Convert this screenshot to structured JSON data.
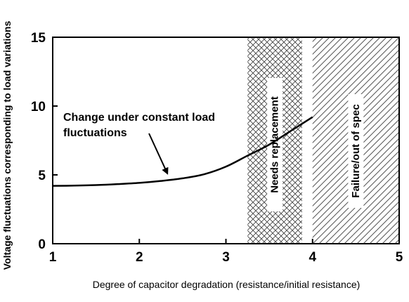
{
  "chart_data": {
    "type": "line",
    "xlabel": "Degree of capacitor degradation (resistance/initial resistance)",
    "ylabel": "Voltage fluctuations corresponding to load variations",
    "xlim": [
      1,
      5
    ],
    "ylim": [
      0,
      15
    ],
    "x_ticks": [
      1,
      2,
      3,
      4,
      5
    ],
    "x_tick_labels": [
      "1",
      "2",
      "3",
      "4",
      "5"
    ],
    "y_ticks": [
      0,
      5,
      10,
      15
    ],
    "y_tick_labels": [
      "0",
      "5",
      "10",
      "15"
    ],
    "grid": false,
    "series": [
      {
        "x": [
          1.0,
          1.25,
          1.5,
          1.75,
          2.0,
          2.25,
          2.5,
          2.75,
          3.0,
          3.25,
          3.5,
          3.75,
          4.0
        ],
        "values": [
          4.2,
          4.22,
          4.26,
          4.33,
          4.42,
          4.56,
          4.75,
          5.05,
          5.6,
          6.4,
          7.2,
          8.2,
          9.2
        ],
        "color": "#000000"
      }
    ],
    "regions": [
      {
        "label": "Needs replacement",
        "x_start": 3.25,
        "x_end": 3.88,
        "pattern": "crosshatch"
      },
      {
        "label": "Failure/out of spec",
        "x_start": 4.0,
        "x_end": 5.0,
        "pattern": "diagonal"
      }
    ],
    "annotations": [
      {
        "lines": [
          "Change under constant load",
          "fluctuations"
        ],
        "arrow_to": [
          2.3,
          5.2
        ]
      }
    ]
  }
}
